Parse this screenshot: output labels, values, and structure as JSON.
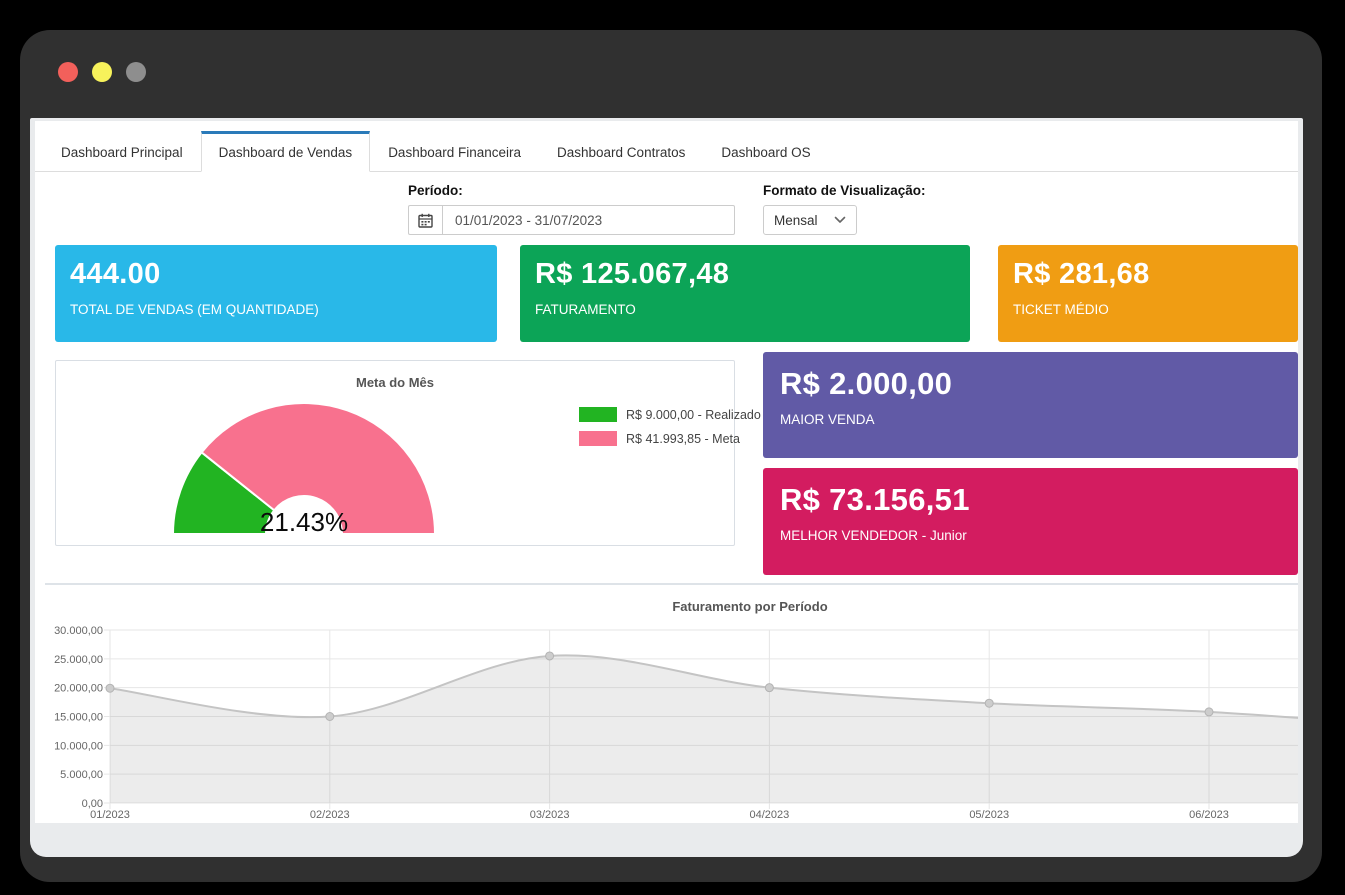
{
  "window": {
    "traffic_lights": [
      {
        "name": "close",
        "color": "#f2605b"
      },
      {
        "name": "minimize",
        "color": "#f7f25b"
      },
      {
        "name": "maximize",
        "color": "#8e8e8e"
      }
    ]
  },
  "accent_blue": "#2a7ab9",
  "tabs": [
    {
      "label": "Dashboard Principal",
      "active": false
    },
    {
      "label": "Dashboard de Vendas",
      "active": true
    },
    {
      "label": "Dashboard Financeira",
      "active": false
    },
    {
      "label": "Dashboard Contratos",
      "active": false
    },
    {
      "label": "Dashboard OS",
      "active": false
    }
  ],
  "filters": {
    "period_label": "Período:",
    "period_value": "01/01/2023 - 31/07/2023",
    "format_label": "Formato de Visualização:",
    "format_value": "Mensal"
  },
  "kpi_cards": [
    {
      "value": "444.00",
      "label": "TOTAL DE VENDAS (EM QUANTIDADE)",
      "color": "#29b8e8"
    },
    {
      "value": "R$ 125.067,48",
      "label": "FATURAMENTO",
      "color": "#0ca457"
    },
    {
      "value": "R$ 281,68",
      "label": "TICKET MÉDIO",
      "color": "#f09d13"
    }
  ],
  "highlight_cards": [
    {
      "value": "R$ 2.000,00",
      "label": "MAIOR VENDA",
      "color": "#615aa6"
    },
    {
      "value": "R$ 73.156,51",
      "label": "MELHOR VENDEDOR - Junior",
      "color": "#d31c60"
    }
  ],
  "chart_data": [
    {
      "type": "pie",
      "subtype": "half-donut-gauge",
      "title": "Meta do Mês",
      "center_label": "21.43%",
      "percent_realized": 21.43,
      "slices": [
        {
          "label": "R$ 9.000,00 - Realizado",
          "value": 9000,
          "color": "#22b422"
        },
        {
          "label": "R$ 41.993,85 - Meta",
          "value": 41993.85,
          "color": "#f8718e"
        }
      ],
      "legend_position": "right"
    },
    {
      "type": "area",
      "title": "Faturamento por Período",
      "categories": [
        "01/2023",
        "02/2023",
        "03/2023",
        "04/2023",
        "05/2023",
        "06/2023"
      ],
      "values": [
        19900,
        15000,
        25500,
        20000,
        17300,
        15800
      ],
      "offscreen_next_value": 13000,
      "ylim": [
        0,
        30000
      ],
      "ytick_labels_top_to_bottom": [
        "30.000,00",
        "25.000,00",
        "20.000,00",
        "15.000,00",
        "10.000,00",
        "5.000,00",
        "0,00"
      ],
      "grid": true,
      "legend": "none",
      "line_color": "#c4c4c4",
      "fill_color": "rgba(168,168,168,0.22)",
      "point_color": "#cdcdcd"
    }
  ]
}
